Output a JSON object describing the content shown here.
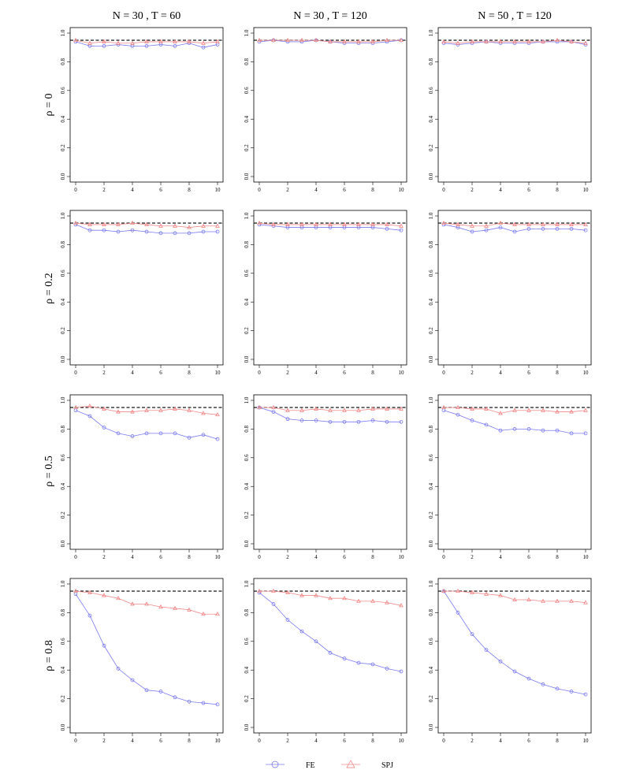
{
  "chart_data": {
    "type": "line",
    "layout": "grid",
    "column_titles": [
      "N = 30 , T = 60",
      "N = 30 , T = 120",
      "N = 50 , T = 120"
    ],
    "row_labels": [
      "ρ = 0",
      "ρ = 0.2",
      "ρ = 0.5",
      "ρ = 0.8"
    ],
    "x": [
      0,
      1,
      2,
      3,
      4,
      5,
      6,
      7,
      8,
      9,
      10
    ],
    "x_ticks": [
      0,
      2,
      4,
      6,
      8,
      10
    ],
    "x_tick_labels": [
      "0",
      "2",
      "4",
      "6",
      "8",
      "10"
    ],
    "xlim": [
      0,
      10
    ],
    "y_ticks": [
      0.0,
      0.2,
      0.4,
      0.6,
      0.8,
      1.0
    ],
    "y_tick_labels": [
      "0.0",
      "0.2",
      "0.4",
      "0.6",
      "0.8",
      "1.0"
    ],
    "ylim": [
      0,
      1
    ],
    "reference_line": 0.95,
    "grid": false,
    "legend": {
      "placement": "bottom-center",
      "entries": [
        {
          "name": "FE",
          "marker": "circle",
          "color": "#6a6aee"
        },
        {
          "name": "SPJ",
          "marker": "triangle",
          "color": "#ee7a7a"
        }
      ]
    },
    "panels": [
      {
        "row": 0,
        "col": 0,
        "series": [
          {
            "name": "FE",
            "values": [
              0.94,
              0.91,
              0.91,
              0.92,
              0.91,
              0.91,
              0.92,
              0.91,
              0.93,
              0.9,
              0.92
            ]
          },
          {
            "name": "SPJ",
            "values": [
              0.95,
              0.93,
              0.94,
              0.93,
              0.93,
              0.94,
              0.94,
              0.94,
              0.94,
              0.93,
              0.94
            ]
          }
        ]
      },
      {
        "row": 0,
        "col": 1,
        "series": [
          {
            "name": "FE",
            "values": [
              0.94,
              0.95,
              0.94,
              0.94,
              0.95,
              0.94,
              0.93,
              0.93,
              0.93,
              0.94,
              0.95
            ]
          },
          {
            "name": "SPJ",
            "values": [
              0.95,
              0.95,
              0.95,
              0.95,
              0.95,
              0.94,
              0.94,
              0.94,
              0.94,
              0.95,
              0.95
            ]
          }
        ]
      },
      {
        "row": 0,
        "col": 2,
        "series": [
          {
            "name": "FE",
            "values": [
              0.93,
              0.92,
              0.93,
              0.94,
              0.93,
              0.93,
              0.93,
              0.94,
              0.94,
              0.94,
              0.92
            ]
          },
          {
            "name": "SPJ",
            "values": [
              0.94,
              0.93,
              0.94,
              0.94,
              0.94,
              0.94,
              0.94,
              0.94,
              0.95,
              0.94,
              0.93
            ]
          }
        ]
      },
      {
        "row": 1,
        "col": 0,
        "series": [
          {
            "name": "FE",
            "values": [
              0.94,
              0.9,
              0.9,
              0.89,
              0.9,
              0.89,
              0.88,
              0.88,
              0.88,
              0.89,
              0.89
            ]
          },
          {
            "name": "SPJ",
            "values": [
              0.95,
              0.94,
              0.94,
              0.94,
              0.95,
              0.94,
              0.93,
              0.93,
              0.92,
              0.93,
              0.93
            ]
          }
        ]
      },
      {
        "row": 1,
        "col": 1,
        "series": [
          {
            "name": "FE",
            "values": [
              0.94,
              0.93,
              0.92,
              0.92,
              0.92,
              0.92,
              0.92,
              0.92,
              0.92,
              0.91,
              0.9
            ]
          },
          {
            "name": "SPJ",
            "values": [
              0.95,
              0.94,
              0.94,
              0.94,
              0.94,
              0.94,
              0.94,
              0.94,
              0.94,
              0.94,
              0.93
            ]
          }
        ]
      },
      {
        "row": 1,
        "col": 2,
        "series": [
          {
            "name": "FE",
            "values": [
              0.94,
              0.92,
              0.89,
              0.9,
              0.92,
              0.89,
              0.91,
              0.91,
              0.91,
              0.91,
              0.9
            ]
          },
          {
            "name": "SPJ",
            "values": [
              0.95,
              0.94,
              0.93,
              0.93,
              0.95,
              0.94,
              0.94,
              0.94,
              0.94,
              0.94,
              0.94
            ]
          }
        ]
      },
      {
        "row": 2,
        "col": 0,
        "series": [
          {
            "name": "FE",
            "values": [
              0.93,
              0.89,
              0.81,
              0.77,
              0.75,
              0.77,
              0.77,
              0.77,
              0.74,
              0.76,
              0.73
            ]
          },
          {
            "name": "SPJ",
            "values": [
              0.95,
              0.96,
              0.94,
              0.92,
              0.92,
              0.93,
              0.93,
              0.94,
              0.93,
              0.91,
              0.9
            ]
          }
        ]
      },
      {
        "row": 2,
        "col": 1,
        "series": [
          {
            "name": "FE",
            "values": [
              0.95,
              0.92,
              0.87,
              0.86,
              0.86,
              0.85,
              0.85,
              0.85,
              0.86,
              0.85,
              0.85
            ]
          },
          {
            "name": "SPJ",
            "values": [
              0.95,
              0.95,
              0.93,
              0.93,
              0.94,
              0.93,
              0.93,
              0.93,
              0.94,
              0.94,
              0.94
            ]
          }
        ]
      },
      {
        "row": 2,
        "col": 2,
        "series": [
          {
            "name": "FE",
            "values": [
              0.93,
              0.9,
              0.86,
              0.83,
              0.79,
              0.8,
              0.8,
              0.79,
              0.79,
              0.77,
              0.77
            ]
          },
          {
            "name": "SPJ",
            "values": [
              0.95,
              0.95,
              0.94,
              0.94,
              0.91,
              0.93,
              0.93,
              0.93,
              0.92,
              0.92,
              0.93
            ]
          }
        ]
      },
      {
        "row": 3,
        "col": 0,
        "series": [
          {
            "name": "FE",
            "values": [
              0.93,
              0.78,
              0.57,
              0.41,
              0.33,
              0.26,
              0.25,
              0.21,
              0.18,
              0.17,
              0.16
            ]
          },
          {
            "name": "SPJ",
            "values": [
              0.95,
              0.94,
              0.92,
              0.9,
              0.86,
              0.86,
              0.84,
              0.83,
              0.82,
              0.79,
              0.79
            ]
          }
        ]
      },
      {
        "row": 3,
        "col": 1,
        "series": [
          {
            "name": "FE",
            "values": [
              0.94,
              0.86,
              0.75,
              0.67,
              0.6,
              0.52,
              0.48,
              0.45,
              0.44,
              0.41,
              0.39
            ]
          },
          {
            "name": "SPJ",
            "values": [
              0.95,
              0.95,
              0.94,
              0.92,
              0.92,
              0.9,
              0.9,
              0.88,
              0.88,
              0.87,
              0.85
            ]
          }
        ]
      },
      {
        "row": 3,
        "col": 2,
        "series": [
          {
            "name": "FE",
            "values": [
              0.95,
              0.8,
              0.65,
              0.54,
              0.46,
              0.39,
              0.34,
              0.3,
              0.27,
              0.25,
              0.23
            ]
          },
          {
            "name": "SPJ",
            "values": [
              0.95,
              0.95,
              0.94,
              0.93,
              0.92,
              0.89,
              0.89,
              0.88,
              0.88,
              0.88,
              0.87
            ]
          }
        ]
      }
    ]
  }
}
